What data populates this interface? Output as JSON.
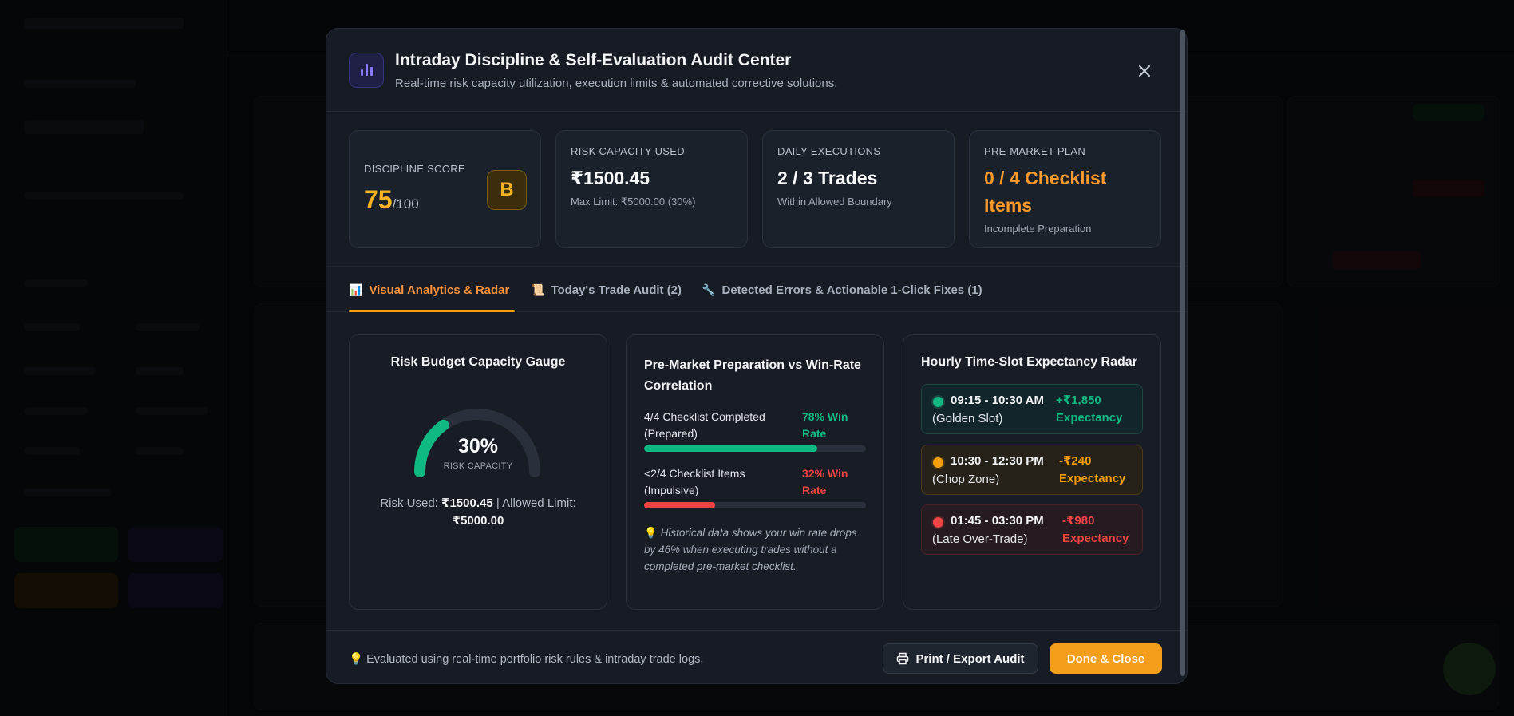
{
  "modal": {
    "title": "Intraday Discipline & Self-Evaluation Audit Center",
    "subtitle": "Real-time risk capacity utilization, execution limits & automated corrective solutions.",
    "icons": {
      "header": "bar-chart-icon",
      "close": "close-icon"
    }
  },
  "stats": {
    "discipline": {
      "label": "DISCIPLINE SCORE",
      "score": "75",
      "max": "/100",
      "grade": "B"
    },
    "risk": {
      "label": "RISK CAPACITY USED",
      "value": "₹1500.45",
      "sub": "Max Limit: ₹5000.00 (30%)"
    },
    "executions": {
      "label": "DAILY EXECUTIONS",
      "value": "2 / 3 Trades",
      "sub": "Within Allowed Boundary"
    },
    "plan": {
      "label": "PRE-MARKET PLAN",
      "value_line1": "0 / 4 Checklist",
      "value_line2": "Items",
      "sub": "Incomplete Preparation"
    }
  },
  "tabs": [
    {
      "glyph": "📊",
      "label": "Visual Analytics & Radar",
      "active": true
    },
    {
      "glyph": "📜",
      "label": "Today's Trade Audit (2)",
      "active": false
    },
    {
      "glyph": "🔧",
      "label": "Detected Errors & Actionable 1-Click Fixes (1)",
      "active": false
    }
  ],
  "gauge": {
    "title": "Risk Budget Capacity Gauge",
    "percent": 30,
    "percent_label": "30%",
    "caption": "RISK CAPACITY",
    "used_label": "Risk Used:",
    "used_value": "₹1500.45",
    "separator": "|",
    "limit_label": "Allowed Limit:",
    "limit_value": "₹5000.00",
    "color": "#10b981"
  },
  "correlation": {
    "title_line1": "Pre-Market Preparation vs Win-Rate",
    "title_line2": "Correlation",
    "rows": [
      {
        "name_line1": "4/4 Checklist Completed",
        "name_line2": "(Prepared)",
        "rate_line1": "78% Win",
        "rate_line2": "Rate",
        "win_rate": 78,
        "color": "#10b981"
      },
      {
        "name_line1": "<2/4 Checklist Items",
        "name_line2": "(Impulsive)",
        "rate_line1": "32% Win",
        "rate_line2": "Rate",
        "win_rate": 32,
        "color": "#ef4444"
      }
    ],
    "note_glyph": "💡",
    "note": "Historical data shows your win rate drops by 46% when executing trades without a completed pre-market checklist."
  },
  "radar": {
    "title": "Hourly Time-Slot Expectancy Radar",
    "slots": [
      {
        "time": "09:15 - 10:30 AM",
        "label": "(Golden Slot)",
        "value": "+₹1,850",
        "value_sub": "Expectancy",
        "color": "#10b981",
        "bg": "#11252a",
        "border": "#1e4740"
      },
      {
        "time": "10:30 - 12:30 PM",
        "label": "(Chop Zone)",
        "value": "-₹240",
        "value_sub": "Expectancy",
        "color": "#f59e0b",
        "bg": "#26221a",
        "border": "#4a3a18"
      },
      {
        "time": "01:45 - 03:30 PM",
        "label": "(Late Over-Trade)",
        "value": "-₹980",
        "value_sub": "Expectancy",
        "color": "#ef4444",
        "bg": "#261b20",
        "border": "#4a2228"
      }
    ]
  },
  "footer": {
    "note_glyph": "💡",
    "note": "Evaluated using real-time portfolio risk rules & intraday trade logs.",
    "print_label": "Print / Export Audit",
    "print_icon": "printer-icon",
    "done_label": "Done & Close"
  }
}
